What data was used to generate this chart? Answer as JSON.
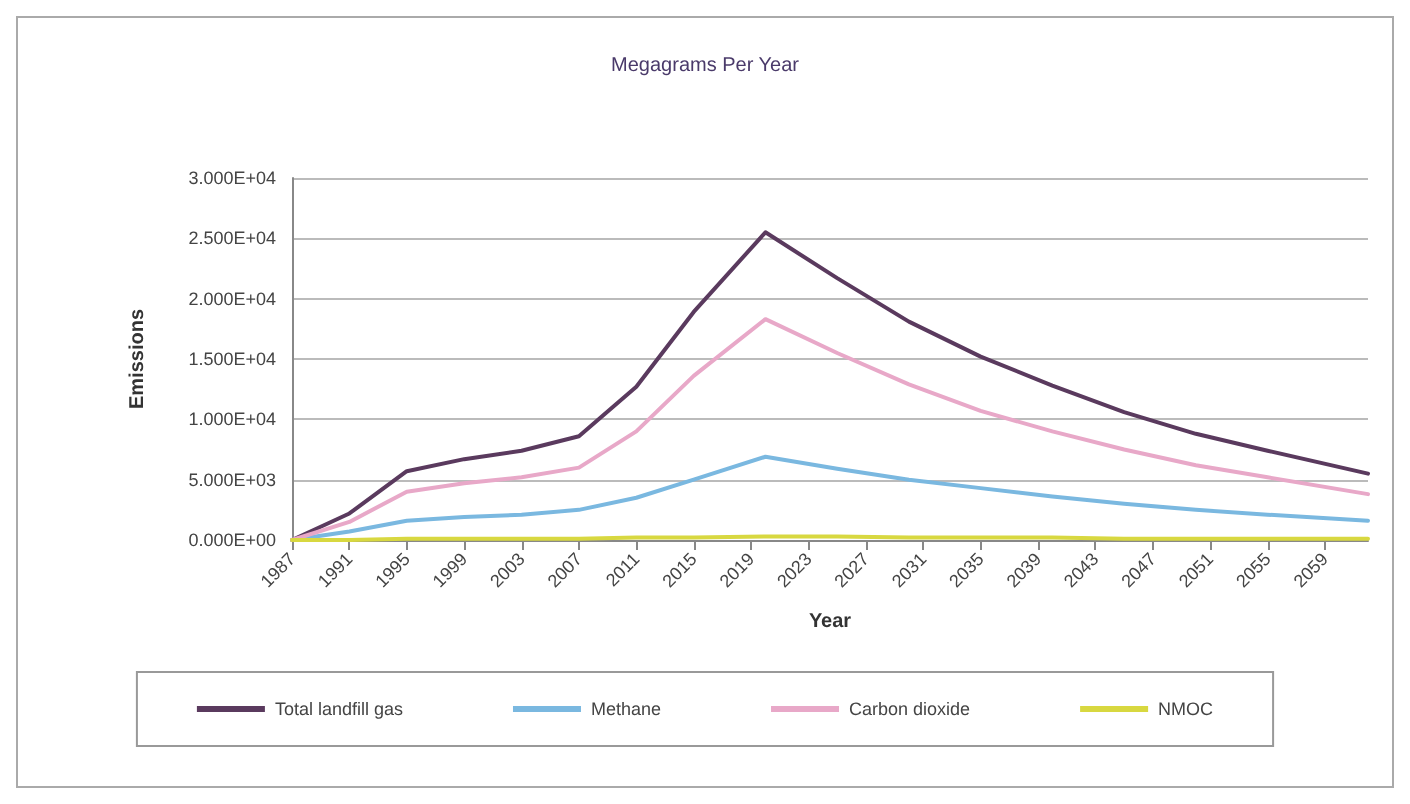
{
  "chart_data": {
    "type": "line",
    "title": "Megagrams Per Year",
    "xlabel": "Year",
    "ylabel": "Emissions",
    "x": [
      1987,
      1991,
      1995,
      1999,
      2003,
      2007,
      2011,
      2015,
      2020,
      2025,
      2030,
      2035,
      2040,
      2045,
      2050,
      2055,
      2062
    ],
    "series": [
      {
        "name": "Total landfill gas",
        "color": "#5a3a5e",
        "values": [
          0,
          2200,
          5700,
          6700,
          7400,
          8600,
          12700,
          18900,
          25500,
          21700,
          18100,
          15200,
          12800,
          10600,
          8800,
          7400,
          5500
        ]
      },
      {
        "name": "Methane",
        "color": "#7ab8e0",
        "values": [
          0,
          700,
          1600,
          1900,
          2100,
          2500,
          3500,
          5000,
          6900,
          5900,
          5000,
          4300,
          3600,
          3000,
          2500,
          2100,
          1600
        ]
      },
      {
        "name": "Carbon dioxide",
        "color": "#e8a8c8",
        "values": [
          0,
          1500,
          4000,
          4700,
          5200,
          6000,
          9000,
          13600,
          18300,
          15500,
          12900,
          10700,
          9000,
          7500,
          6200,
          5200,
          3800
        ]
      },
      {
        "name": "NMOC",
        "color": "#d8d840",
        "values": [
          0,
          0,
          100,
          100,
          100,
          100,
          200,
          200,
          300,
          300,
          200,
          200,
          200,
          100,
          100,
          100,
          100
        ]
      }
    ],
    "xlim": [
      1987,
      2062
    ],
    "xticks": [
      1987,
      1991,
      1995,
      1999,
      2003,
      2007,
      2011,
      2015,
      2019,
      2023,
      2027,
      2031,
      2035,
      2039,
      2043,
      2047,
      2051,
      2055,
      2059
    ],
    "ylim": [
      0,
      30000
    ],
    "yticks": [
      {
        "value": 0,
        "label": "0.000E+00"
      },
      {
        "value": 5000,
        "label": "5.000E+03"
      },
      {
        "value": 10000,
        "label": "1.000E+04"
      },
      {
        "value": 15000,
        "label": "1.500E+04"
      },
      {
        "value": 20000,
        "label": "2.000E+04"
      },
      {
        "value": 25000,
        "label": "2.500E+04"
      },
      {
        "value": 30000,
        "label": "3.000E+04"
      }
    ],
    "grid": "y",
    "legend": "bottom",
    "marker": "none",
    "line_style": "solid"
  }
}
